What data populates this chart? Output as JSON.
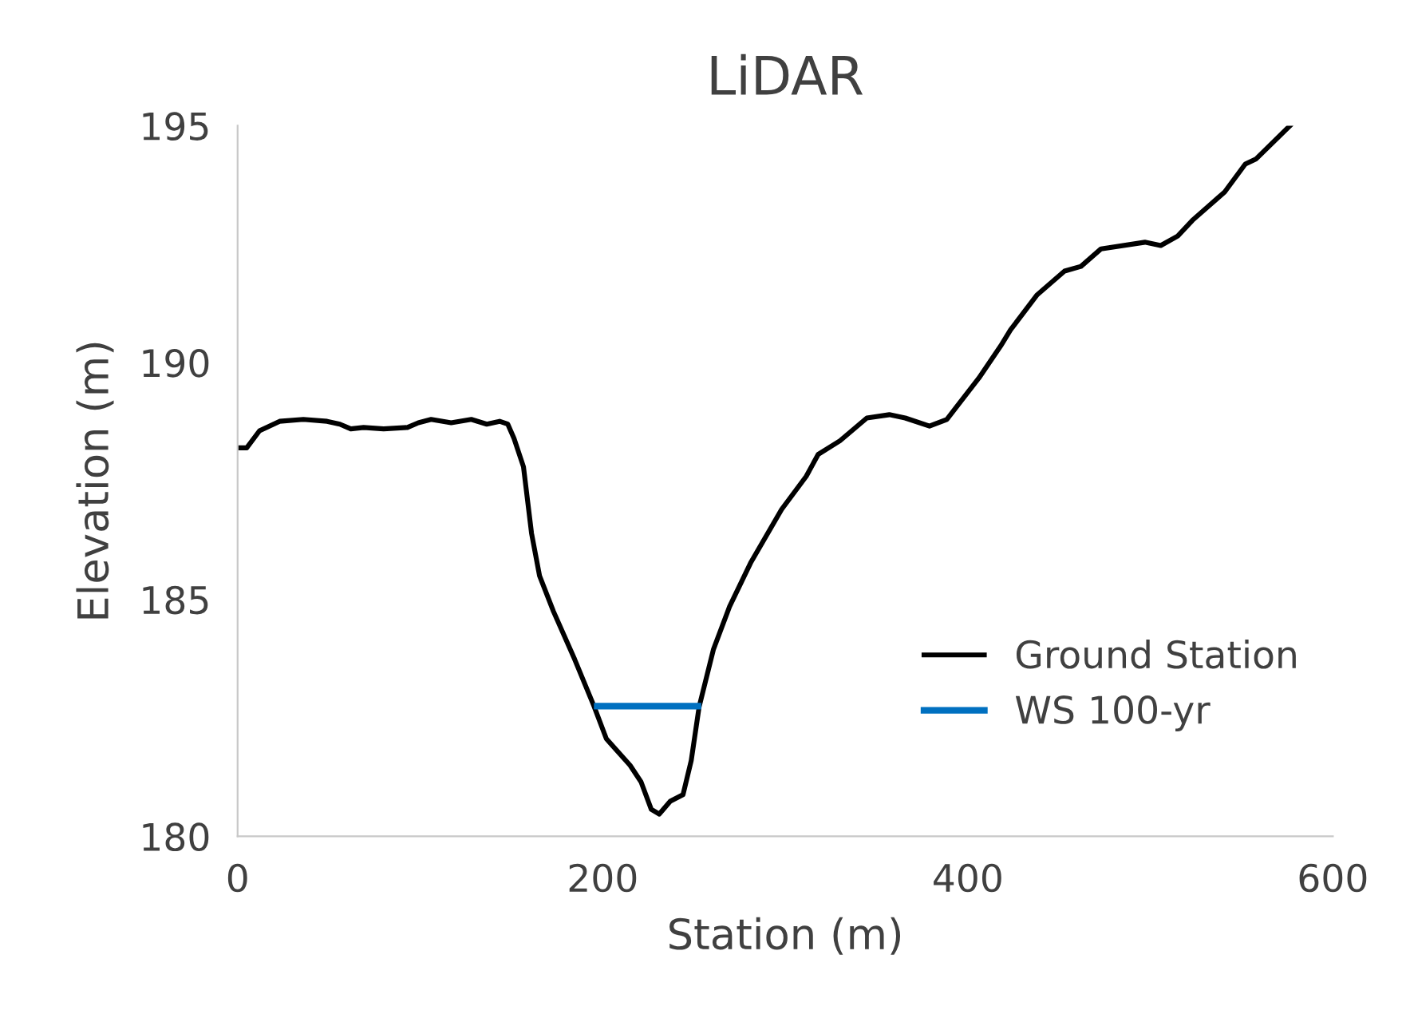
{
  "chart_data": {
    "type": "line",
    "title": "LiDAR",
    "xlabel": "Station (m)",
    "ylabel": "Elevation (m)",
    "xlim": [
      0,
      600
    ],
    "xticks": [
      0,
      200,
      400,
      600
    ],
    "ylim": [
      180,
      195
    ],
    "yticks": [
      180,
      185,
      190,
      195
    ],
    "grid": false,
    "legend": "bottom right",
    "marker": "none",
    "line_style": "solid",
    "series": [
      {
        "name": "Ground Station",
        "color": "#000000",
        "x": [
          0,
          5,
          12,
          23,
          36,
          49,
          56,
          62,
          69,
          80,
          93,
          99,
          106,
          117,
          128,
          136.5,
          143.5,
          148,
          151.4,
          156.6,
          161,
          165.4,
          173,
          184.6,
          195,
          202,
          215,
          221,
          226.6,
          231,
          237,
          244,
          248.5,
          252.8,
          260.7,
          269.5,
          281,
          298,
          311.5,
          318,
          330,
          344.7,
          357,
          365.7,
          379,
          388.5,
          406,
          418,
          423.4,
          438,
          453,
          462,
          473,
          497,
          505.7,
          515,
          523,
          540.7,
          552,
          558,
          576.5
        ],
        "values": [
          188.2,
          188.2,
          188.56,
          188.76,
          188.8,
          188.76,
          188.7,
          188.6,
          188.63,
          188.6,
          188.63,
          188.73,
          188.8,
          188.73,
          188.8,
          188.7,
          188.76,
          188.7,
          188.4,
          187.8,
          186.4,
          185.5,
          184.75,
          183.74,
          182.77,
          182.06,
          181.5,
          181.15,
          180.57,
          180.47,
          180.74,
          180.88,
          181.6,
          182.73,
          183.95,
          184.85,
          185.77,
          186.9,
          187.6,
          188.06,
          188.35,
          188.83,
          188.9,
          188.83,
          188.66,
          188.8,
          189.67,
          190.35,
          190.69,
          191.43,
          191.93,
          192.03,
          192.4,
          192.54,
          192.47,
          192.67,
          193.0,
          193.6,
          194.19,
          194.3,
          195.0
        ]
      },
      {
        "name": "WS 100-yr",
        "color": "#0070c0",
        "x": [
          197,
          252.2
        ],
        "values": [
          182.75,
          182.75
        ]
      }
    ]
  }
}
